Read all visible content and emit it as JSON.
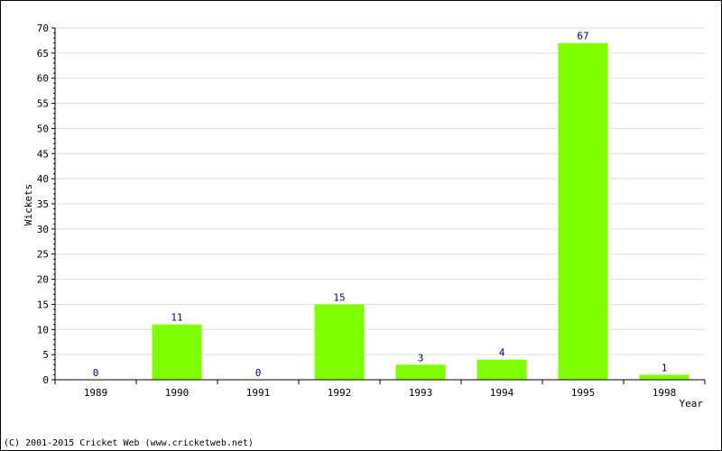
{
  "chart_data": {
    "type": "bar",
    "title": "",
    "xlabel": "Year",
    "ylabel": "Wickets",
    "categories": [
      "1989",
      "1990",
      "1991",
      "1992",
      "1993",
      "1994",
      "1995",
      "1998"
    ],
    "values": [
      0,
      11,
      0,
      15,
      3,
      4,
      67,
      1
    ],
    "ylim": [
      0,
      70
    ],
    "yticks": [
      0,
      5,
      10,
      15,
      20,
      25,
      30,
      35,
      40,
      45,
      50,
      55,
      60,
      65,
      70
    ],
    "grid": true,
    "legend": "none",
    "bar_color": "#7fff00",
    "data_label_color": "#000080",
    "grid_color": "#dddddd"
  },
  "footer": {
    "text": "(C) 2001-2015 Cricket Web (www.cricketweb.net)"
  }
}
